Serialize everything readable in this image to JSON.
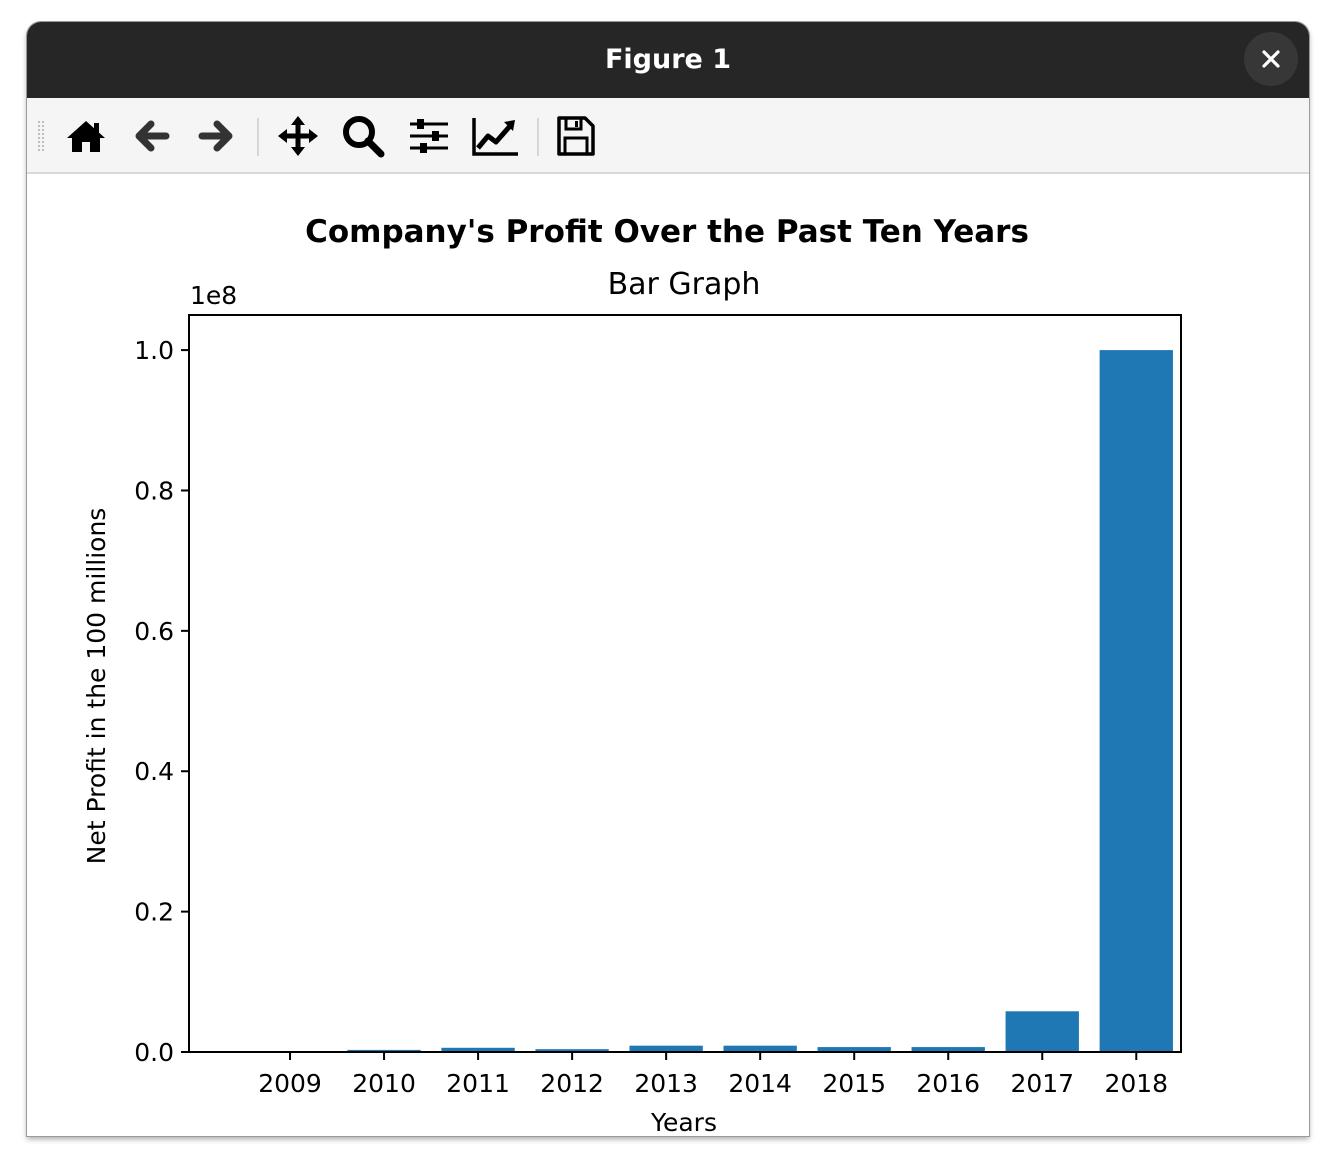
{
  "window": {
    "title": "Figure 1"
  },
  "toolbar": {
    "buttons": [
      {
        "name": "home",
        "icon": "home-icon"
      },
      {
        "name": "back",
        "icon": "arrow-left-icon"
      },
      {
        "name": "forward",
        "icon": "arrow-right-icon"
      },
      {
        "name": "pan",
        "icon": "move-icon"
      },
      {
        "name": "zoom",
        "icon": "zoom-icon"
      },
      {
        "name": "configure-subplots",
        "icon": "sliders-icon"
      },
      {
        "name": "edit-axes",
        "icon": "line-chart-icon"
      },
      {
        "name": "save",
        "icon": "save-icon"
      }
    ]
  },
  "colors": {
    "bar": "#1f77b4",
    "titlebar": "#262626"
  },
  "chart_data": {
    "type": "bar",
    "suptitle": "Company's Profit Over the Past Ten Years",
    "title": "Bar Graph",
    "xlabel": "Years",
    "ylabel": "Net Profit in the 100 millions",
    "offset_text": "1e8",
    "categories": [
      "2009",
      "2010",
      "2011",
      "2012",
      "2013",
      "2014",
      "2015",
      "2016",
      "2017",
      "2018"
    ],
    "values": [
      0,
      300000,
      600000,
      400000,
      900000,
      900000,
      700000,
      700000,
      5800000,
      100000000
    ],
    "ylim": [
      0,
      105000000
    ],
    "yticks": [
      0,
      20000000,
      40000000,
      60000000,
      80000000,
      100000000
    ],
    "ytick_labels": [
      "0.0",
      "0.2",
      "0.4",
      "0.6",
      "0.8",
      "1.0"
    ],
    "grid": false,
    "legend": "none"
  }
}
